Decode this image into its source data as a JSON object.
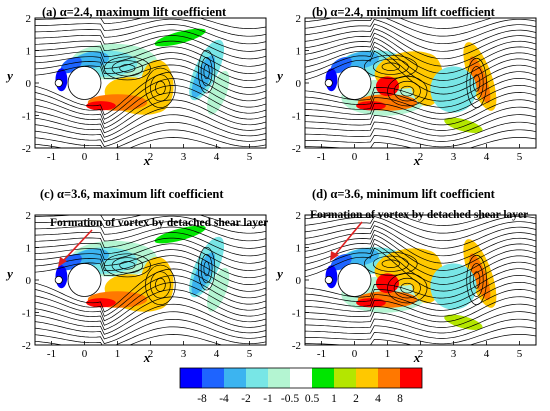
{
  "panels": [
    {
      "title": "(a) α=2.4, maximum lift coefficient",
      "annotation": "",
      "phase": 0
    },
    {
      "title": "(b) α=2.4, minimum lift coefficient",
      "annotation": "",
      "phase": 1
    },
    {
      "title": "(c) α=3.6, maximum lift coefficient",
      "annotation": "Formation of vortex by detached shear layer",
      "phase": 0
    },
    {
      "title": "(d) α=3.6, minimum lift coefficient",
      "annotation": "Formation of vortex by detached shear layer",
      "phase": 1
    }
  ],
  "axes": {
    "xlabel": "x",
    "ylabel": "y",
    "x_ticks": [
      "-1",
      "0",
      "1",
      "2",
      "3",
      "4",
      "5"
    ],
    "y_ticks": [
      "2",
      "1",
      "0",
      "-1",
      "-2"
    ],
    "xlim": [
      -1.5,
      5.5
    ],
    "ylim": [
      -2,
      2
    ]
  },
  "colorbar": {
    "labels": [
      "-8",
      "-4",
      "-2",
      "-1",
      "-0.5",
      "0.5",
      "1",
      "2",
      "4",
      "8"
    ],
    "colors": [
      "#0000ff",
      "#1e64ff",
      "#3cb4f0",
      "#78e6e6",
      "#b4f5d2",
      "#ffffff",
      "#00e600",
      "#b4e600",
      "#ffc800",
      "#ff7800",
      "#ff0000"
    ]
  },
  "colors": {
    "streamline": "#000000",
    "arrow": "#e02020"
  }
}
